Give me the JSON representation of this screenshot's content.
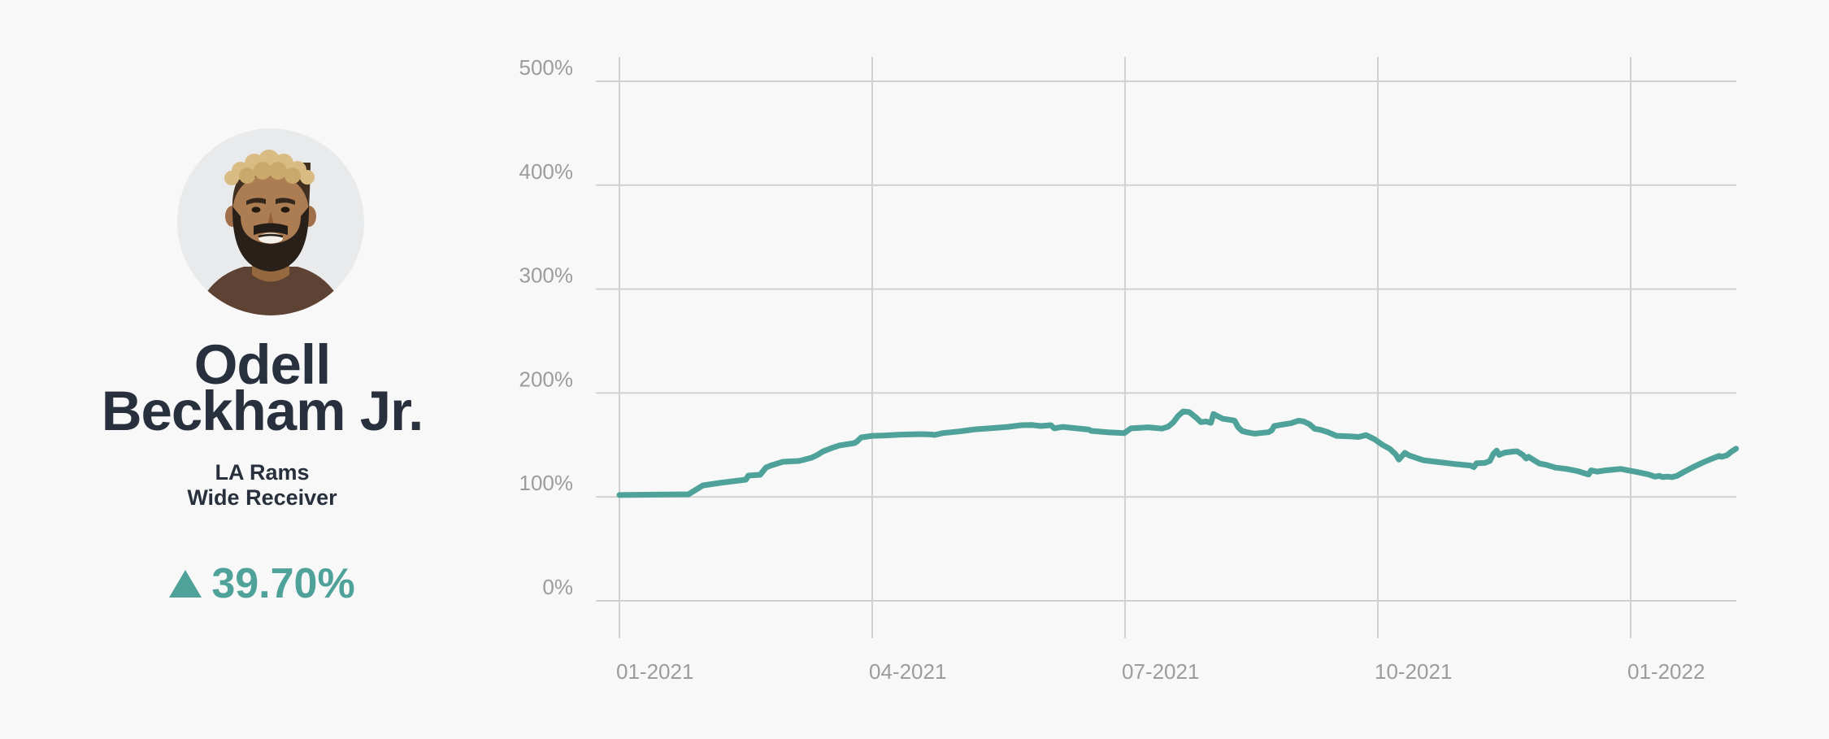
{
  "page": {
    "background": "#f7f8f7"
  },
  "player_card": {
    "name_line1": "Odell",
    "name_line2": "Beckham Jr.",
    "team": "LA Rams",
    "position": "Wide Receiver",
    "change_value": "39.70%",
    "change_direction": "up",
    "avatar": "odell-beckham-jr-headshot"
  },
  "colors": {
    "accent_teal": "#4ea29a",
    "name_dark": "#27303c",
    "avatar_bg": "#e9eaeb"
  },
  "chart_data": {
    "type": "line",
    "title": "",
    "x_unit": "months_since_2021_01",
    "y_unit": "percent",
    "x_tick_months": [
      0,
      3,
      6,
      9,
      12
    ],
    "x_tick_labels": [
      "01-2021",
      "04-2021",
      "07-2021",
      "10-2021",
      "01-2022"
    ],
    "y_ticks": [
      0,
      100,
      200,
      300,
      400,
      500
    ],
    "y_tick_labels": [
      "0%",
      "100%",
      "200%",
      "300%",
      "400%",
      "500%"
    ],
    "ylim": [
      0,
      500
    ],
    "xlim_months": [
      0,
      13.25
    ],
    "grid": true,
    "legend": "none",
    "line_color": "#4ea29a",
    "grid_color": "#d1d1cf",
    "axis_label_color": "#9c9d9b",
    "points": [
      [
        0,
        101.8
      ],
      [
        0.2,
        102
      ],
      [
        0.45,
        102.2
      ],
      [
        0.7,
        102.4
      ],
      [
        0.82,
        102.5
      ],
      [
        0.99,
        111
      ],
      [
        1.2,
        113.5
      ],
      [
        1.5,
        116.6
      ],
      [
        1.53,
        120.5
      ],
      [
        1.67,
        121.3
      ],
      [
        1.74,
        128.3
      ],
      [
        1.8,
        130.3
      ],
      [
        1.94,
        133.8
      ],
      [
        2.13,
        134.6
      ],
      [
        2.17,
        135.4
      ],
      [
        2.28,
        137.7
      ],
      [
        2.34,
        140
      ],
      [
        2.42,
        144
      ],
      [
        2.52,
        147
      ],
      [
        2.61,
        149.5
      ],
      [
        2.79,
        151.8
      ],
      [
        2.82,
        153.4
      ],
      [
        2.87,
        157.3
      ],
      [
        3,
        158.8
      ],
      [
        3.13,
        159.1
      ],
      [
        3.33,
        159.9
      ],
      [
        3.58,
        160.4
      ],
      [
        3.71,
        160
      ],
      [
        3.74,
        159.6
      ],
      [
        3.84,
        161.4
      ],
      [
        4.03,
        163
      ],
      [
        4.22,
        165
      ],
      [
        4.42,
        166.2
      ],
      [
        4.61,
        167.4
      ],
      [
        4.77,
        169
      ],
      [
        4.9,
        169.2
      ],
      [
        5,
        168.2
      ],
      [
        5.12,
        169
      ],
      [
        5.16,
        166
      ],
      [
        5.26,
        167.4
      ],
      [
        5.45,
        165.8
      ],
      [
        5.57,
        164.8
      ],
      [
        5.6,
        163.5
      ],
      [
        5.8,
        162.2
      ],
      [
        5.99,
        161.4
      ],
      [
        6.07,
        166
      ],
      [
        6.2,
        166.6
      ],
      [
        6.28,
        167
      ],
      [
        6.44,
        165.7
      ],
      [
        6.51,
        167.5
      ],
      [
        6.57,
        171.5
      ],
      [
        6.63,
        177.9
      ],
      [
        6.69,
        182.2
      ],
      [
        6.76,
        181.7
      ],
      [
        6.85,
        175.9
      ],
      [
        6.9,
        171.9
      ],
      [
        6.96,
        172.6
      ],
      [
        7.02,
        171.3
      ],
      [
        7.05,
        179.8
      ],
      [
        7.1,
        177.6
      ],
      [
        7.16,
        175.2
      ],
      [
        7.27,
        173.9
      ],
      [
        7.3,
        173.4
      ],
      [
        7.34,
        167.3
      ],
      [
        7.39,
        163.4
      ],
      [
        7.45,
        162.1
      ],
      [
        7.54,
        160.9
      ],
      [
        7.6,
        161.4
      ],
      [
        7.7,
        162.2
      ],
      [
        7.74,
        164
      ],
      [
        7.77,
        168.2
      ],
      [
        7.85,
        169.3
      ],
      [
        7.97,
        170.9
      ],
      [
        8.06,
        173.4
      ],
      [
        8.12,
        172.6
      ],
      [
        8.19,
        169.9
      ],
      [
        8.25,
        165.6
      ],
      [
        8.31,
        164.8
      ],
      [
        8.41,
        162.2
      ],
      [
        8.51,
        158.8
      ],
      [
        8.67,
        158.3
      ],
      [
        8.77,
        157.7
      ],
      [
        8.86,
        159.5
      ],
      [
        8.96,
        155.5
      ],
      [
        9.05,
        150.3
      ],
      [
        9.14,
        146.4
      ],
      [
        9.21,
        141.1
      ],
      [
        9.25,
        135.9
      ],
      [
        9.32,
        142.4
      ],
      [
        9.37,
        139.9
      ],
      [
        9.47,
        137.2
      ],
      [
        9.54,
        135.3
      ],
      [
        9.73,
        133.4
      ],
      [
        9.92,
        131.6
      ],
      [
        10.1,
        130.2
      ],
      [
        10.14,
        128.6
      ],
      [
        10.17,
        132.3
      ],
      [
        10.27,
        132.7
      ],
      [
        10.33,
        134.7
      ],
      [
        10.37,
        141.2
      ],
      [
        10.41,
        144.6
      ],
      [
        10.44,
        140.4
      ],
      [
        10.5,
        142.5
      ],
      [
        10.6,
        143.6
      ],
      [
        10.65,
        143.9
      ],
      [
        10.68,
        142.5
      ],
      [
        10.72,
        140.4
      ],
      [
        10.76,
        136.9
      ],
      [
        10.79,
        138.6
      ],
      [
        10.84,
        136
      ],
      [
        10.92,
        132.1
      ],
      [
        11,
        130.8
      ],
      [
        11.11,
        128.2
      ],
      [
        11.24,
        126.9
      ],
      [
        11.37,
        124.8
      ],
      [
        11.5,
        121.6
      ],
      [
        11.53,
        125.5
      ],
      [
        11.6,
        124.3
      ],
      [
        11.7,
        125.5
      ],
      [
        11.8,
        126.3
      ],
      [
        11.88,
        126.9
      ],
      [
        11.97,
        125.5
      ],
      [
        12.08,
        123.9
      ],
      [
        12.21,
        121.6
      ],
      [
        12.29,
        119.5
      ],
      [
        12.34,
        120.3
      ],
      [
        12.38,
        119.1
      ],
      [
        12.44,
        119.5
      ],
      [
        12.49,
        119
      ],
      [
        12.55,
        120.3
      ],
      [
        12.64,
        124.3
      ],
      [
        12.73,
        128.2
      ],
      [
        12.83,
        132.1
      ],
      [
        12.92,
        135.3
      ],
      [
        13,
        137.9
      ],
      [
        13.05,
        139.4
      ],
      [
        13.08,
        138.6
      ],
      [
        13.14,
        140
      ],
      [
        13.2,
        143.8
      ],
      [
        13.25,
        146.4
      ]
    ]
  }
}
